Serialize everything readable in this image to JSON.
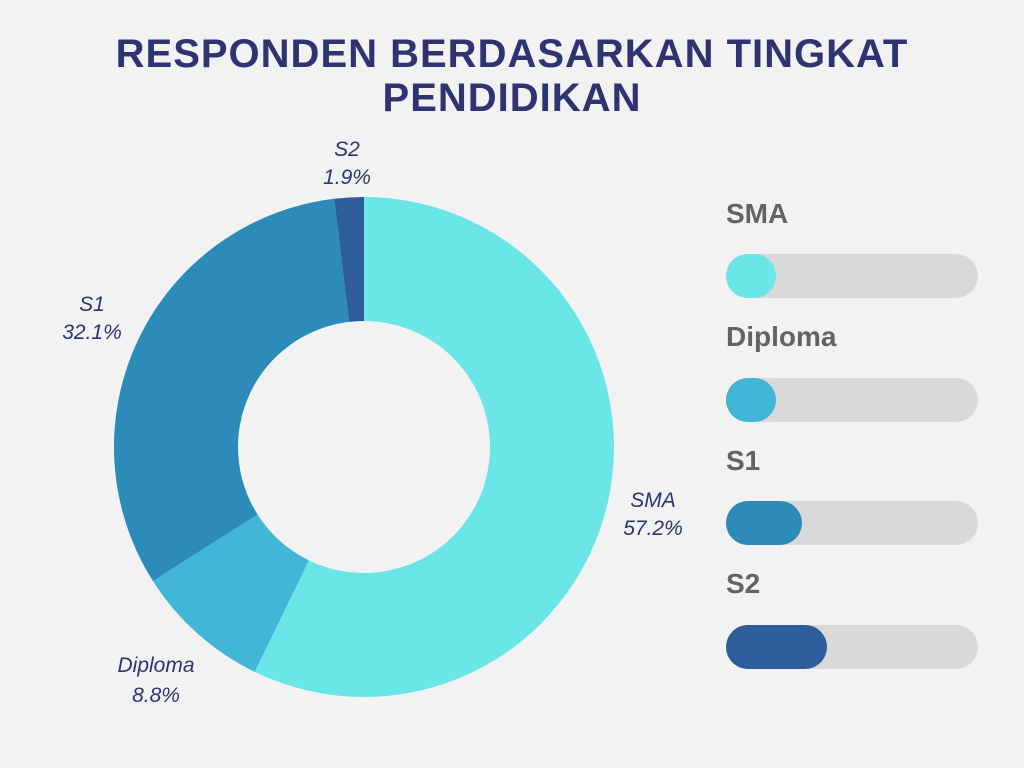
{
  "title": {
    "line1": "RESPONDEN BERDASARKAN TINGKAT",
    "line2": "PENDIDIKAN"
  },
  "chart_data": {
    "type": "pie",
    "donut": true,
    "title": "RESPONDEN BERDASARKAN TINGKAT PENDIDIKAN",
    "categories": [
      "SMA",
      "Diploma",
      "S1",
      "S2"
    ],
    "values": [
      57.2,
      8.8,
      32.1,
      1.9
    ],
    "percent_labels": [
      "57.2%",
      "8.8%",
      "32.1%",
      "1.9%"
    ],
    "colors": [
      "#6ae5e8",
      "#41b6d6",
      "#2c8bb8",
      "#2d5d9a"
    ]
  },
  "legend": {
    "items": [
      {
        "label": "SMA",
        "color": "#6ae5e8",
        "fill_fraction": 0.2
      },
      {
        "label": "Diploma",
        "color": "#41b6d6",
        "fill_fraction": 0.2
      },
      {
        "label": "S1",
        "color": "#2c8bb8",
        "fill_fraction": 0.3
      },
      {
        "label": "S2",
        "color": "#2d5d9a",
        "fill_fraction": 0.4
      }
    ],
    "track_color": "#d9d9d9"
  }
}
